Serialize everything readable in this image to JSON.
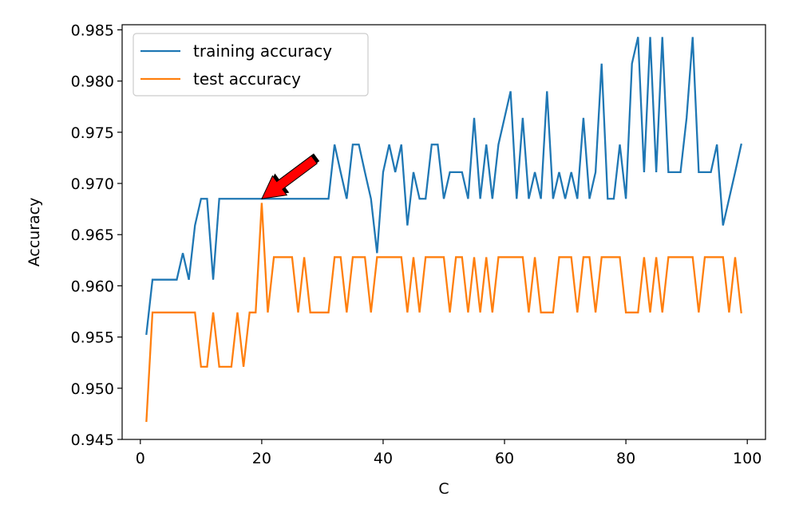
{
  "chart_data": {
    "type": "line",
    "xlabel": "C",
    "ylabel": "Accuracy",
    "xlim": [
      -3,
      103
    ],
    "ylim": [
      0.945,
      0.9855
    ],
    "xticks": [
      0,
      20,
      40,
      60,
      80,
      100
    ],
    "xtick_labels": [
      "0",
      "20",
      "40",
      "60",
      "80",
      "100"
    ],
    "yticks": [
      0.945,
      0.95,
      0.955,
      0.96,
      0.965,
      0.97,
      0.975,
      0.98,
      0.985
    ],
    "ytick_labels": [
      "0.945",
      "0.950",
      "0.955",
      "0.960",
      "0.965",
      "0.970",
      "0.975",
      "0.980",
      "0.985"
    ],
    "grid": false,
    "legend_position": "upper-left",
    "x": [
      1,
      2,
      3,
      4,
      5,
      6,
      7,
      8,
      9,
      10,
      11,
      12,
      13,
      14,
      15,
      16,
      17,
      18,
      19,
      20,
      21,
      22,
      23,
      24,
      25,
      26,
      27,
      28,
      29,
      30,
      31,
      32,
      33,
      34,
      35,
      36,
      37,
      38,
      39,
      40,
      41,
      42,
      43,
      44,
      45,
      46,
      47,
      48,
      49,
      50,
      51,
      52,
      53,
      54,
      55,
      56,
      57,
      58,
      59,
      60,
      61,
      62,
      63,
      64,
      65,
      66,
      67,
      68,
      69,
      70,
      71,
      72,
      73,
      74,
      75,
      76,
      77,
      78,
      79,
      80,
      81,
      82,
      83,
      84,
      85,
      86,
      87,
      88,
      89,
      90,
      91,
      92,
      93,
      94,
      95,
      96,
      97,
      98,
      99
    ],
    "series": [
      {
        "name": "training accuracy",
        "color": "#1f77b4",
        "values": [
          0.9553,
          0.9606,
          0.9606,
          0.9606,
          0.9606,
          0.9606,
          0.9632,
          0.9606,
          0.9659,
          0.9685,
          0.9685,
          0.9606,
          0.9685,
          0.9685,
          0.9685,
          0.9685,
          0.9685,
          0.9685,
          0.9685,
          0.9685,
          0.9685,
          0.9685,
          0.9685,
          0.9685,
          0.9685,
          0.9685,
          0.9685,
          0.9685,
          0.9685,
          0.9685,
          0.9685,
          0.9738,
          0.9711,
          0.9685,
          0.9738,
          0.9738,
          0.9711,
          0.9685,
          0.9632,
          0.9711,
          0.9738,
          0.9711,
          0.9738,
          0.9659,
          0.9711,
          0.9685,
          0.9685,
          0.9738,
          0.9738,
          0.9685,
          0.9711,
          0.9711,
          0.9711,
          0.9685,
          0.9764,
          0.9685,
          0.9738,
          0.9685,
          0.9738,
          0.9764,
          0.979,
          0.9685,
          0.9764,
          0.9685,
          0.9711,
          0.9685,
          0.979,
          0.9685,
          0.9711,
          0.9685,
          0.9711,
          0.9685,
          0.9764,
          0.9685,
          0.9711,
          0.9817,
          0.9685,
          0.9685,
          0.9738,
          0.9685,
          0.9817,
          0.9843,
          0.9711,
          0.9843,
          0.9711,
          0.9843,
          0.9711,
          0.9711,
          0.9711,
          0.9764,
          0.9843,
          0.9711,
          0.9711,
          0.9711,
          0.9738,
          0.9659,
          0.9685,
          0.9711,
          0.9738
        ]
      },
      {
        "name": "test accuracy",
        "color": "#ff7f0e",
        "values": [
          0.9468,
          0.9574,
          0.9574,
          0.9574,
          0.9574,
          0.9574,
          0.9574,
          0.9574,
          0.9574,
          0.9521,
          0.9521,
          0.9574,
          0.9521,
          0.9521,
          0.9521,
          0.9574,
          0.9521,
          0.9574,
          0.9574,
          0.9681,
          0.9574,
          0.9628,
          0.9628,
          0.9628,
          0.9628,
          0.9574,
          0.9628,
          0.9574,
          0.9574,
          0.9574,
          0.9574,
          0.9628,
          0.9628,
          0.9574,
          0.9628,
          0.9628,
          0.9628,
          0.9574,
          0.9628,
          0.9628,
          0.9628,
          0.9628,
          0.9628,
          0.9574,
          0.9628,
          0.9574,
          0.9628,
          0.9628,
          0.9628,
          0.9628,
          0.9574,
          0.9628,
          0.9628,
          0.9574,
          0.9628,
          0.9574,
          0.9628,
          0.9574,
          0.9628,
          0.9628,
          0.9628,
          0.9628,
          0.9628,
          0.9574,
          0.9628,
          0.9574,
          0.9574,
          0.9574,
          0.9628,
          0.9628,
          0.9628,
          0.9574,
          0.9628,
          0.9628,
          0.9574,
          0.9628,
          0.9628,
          0.9628,
          0.9628,
          0.9574,
          0.9574,
          0.9574,
          0.9628,
          0.9574,
          0.9628,
          0.9574,
          0.9628,
          0.9628,
          0.9628,
          0.9628,
          0.9628,
          0.9574,
          0.9628,
          0.9628,
          0.9628,
          0.9628,
          0.9574,
          0.9628,
          0.9574
        ]
      }
    ],
    "annotation": {
      "type": "arrow",
      "color": "#ff0000",
      "points_to": {
        "x": 20,
        "y": 0.9685
      }
    }
  }
}
